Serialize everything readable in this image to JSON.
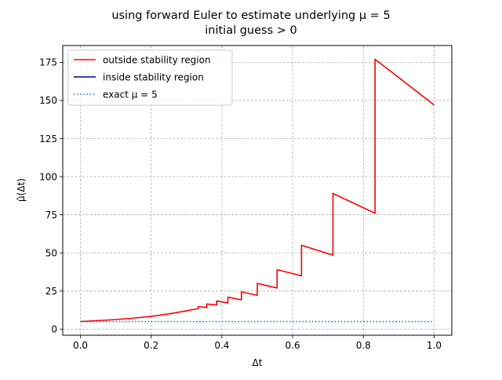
{
  "chart_data": {
    "type": "line",
    "title": [
      "using forward Euler to estimate underlying μ = 5",
      "initial guess > 0"
    ],
    "xlabel": "Δt",
    "ylabel": "μ̂(Δt)",
    "xlim": [
      -0.05,
      1.05
    ],
    "ylim": [
      -4,
      186
    ],
    "xticks": [
      {
        "value": 0.0,
        "label": "0.0"
      },
      {
        "value": 0.2,
        "label": "0.2"
      },
      {
        "value": 0.4,
        "label": "0.4"
      },
      {
        "value": 0.6,
        "label": "0.6"
      },
      {
        "value": 0.8,
        "label": "0.8"
      },
      {
        "value": 1.0,
        "label": "1.0"
      }
    ],
    "yticks": [
      {
        "value": 0,
        "label": "0"
      },
      {
        "value": 25,
        "label": "25"
      },
      {
        "value": 50,
        "label": "50"
      },
      {
        "value": 75,
        "label": "75"
      },
      {
        "value": 100,
        "label": "100"
      },
      {
        "value": 125,
        "label": "125"
      },
      {
        "value": 150,
        "label": "150"
      },
      {
        "value": 175,
        "label": "175"
      }
    ],
    "grid": true,
    "legend_position": "top-left",
    "series": [
      {
        "name": "outside stability region",
        "color": "#ff0000",
        "style": "solid",
        "points": [
          [
            0.0,
            5.0
          ],
          [
            0.05,
            5.6
          ],
          [
            0.1,
            6.3
          ],
          [
            0.15,
            7.2
          ],
          [
            0.2,
            8.4
          ],
          [
            0.25,
            10.0
          ],
          [
            0.3,
            12.0
          ],
          [
            0.333,
            13.5
          ],
          [
            0.333,
            14.8
          ],
          [
            0.357,
            14.2
          ],
          [
            0.357,
            16.5
          ],
          [
            0.385,
            15.8
          ],
          [
            0.385,
            18.5
          ],
          [
            0.417,
            17.2
          ],
          [
            0.417,
            21.0
          ],
          [
            0.455,
            19.2
          ],
          [
            0.455,
            24.5
          ],
          [
            0.5,
            22.2
          ],
          [
            0.5,
            30.0
          ],
          [
            0.556,
            27.0
          ],
          [
            0.556,
            39.0
          ],
          [
            0.625,
            35.0
          ],
          [
            0.625,
            55.0
          ],
          [
            0.714,
            48.5
          ],
          [
            0.714,
            89.0
          ],
          [
            0.833,
            76.0
          ],
          [
            0.833,
            177.0
          ],
          [
            0.9,
            165.0
          ],
          [
            1.0,
            147.0
          ]
        ]
      },
      {
        "name": "inside stability region",
        "color": "#00008b",
        "style": "solid",
        "points": []
      },
      {
        "name": "exact μ = 5",
        "color": "#1f77b4",
        "style": "dotted",
        "points": [
          [
            0.0,
            5.0
          ],
          [
            1.0,
            5.0
          ]
        ]
      }
    ]
  }
}
